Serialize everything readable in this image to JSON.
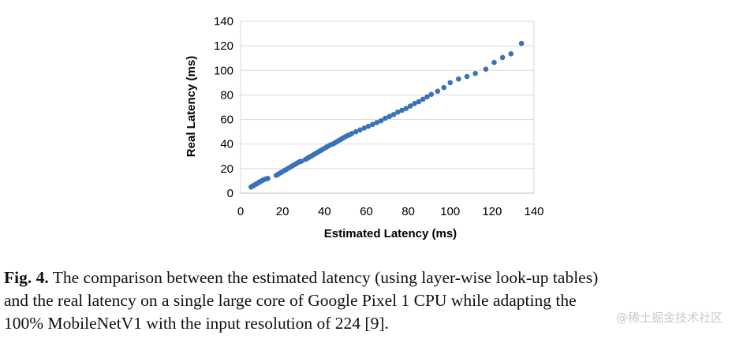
{
  "chart_data": {
    "type": "scatter",
    "xlabel": "Estimated Latency (ms)",
    "ylabel": "Real Latency (ms)",
    "xlim": [
      0,
      140
    ],
    "ylim": [
      0,
      140
    ],
    "x_ticks": [
      "0",
      "20",
      "40",
      "60",
      "80",
      "100",
      "120",
      "140"
    ],
    "y_ticks": [
      "0",
      "20",
      "40",
      "60",
      "80",
      "100",
      "120",
      "140"
    ],
    "grid": "horizontal",
    "color": "#3a72b8",
    "points": [
      [
        5,
        5
      ],
      [
        5.5,
        5.5
      ],
      [
        6,
        6
      ],
      [
        6.5,
        6.5
      ],
      [
        7,
        7
      ],
      [
        7.5,
        7.5
      ],
      [
        8,
        8
      ],
      [
        8.5,
        8.5
      ],
      [
        9,
        9
      ],
      [
        9.5,
        9.5
      ],
      [
        10,
        10
      ],
      [
        10.5,
        10.5
      ],
      [
        11,
        11
      ],
      [
        12,
        11.5
      ],
      [
        13,
        12
      ],
      [
        17,
        14.5
      ],
      [
        18,
        15.5
      ],
      [
        19,
        16.5
      ],
      [
        20,
        17.5
      ],
      [
        21,
        18.5
      ],
      [
        22,
        19.5
      ],
      [
        23,
        20.5
      ],
      [
        24,
        21.5
      ],
      [
        25,
        22.5
      ],
      [
        26,
        23.5
      ],
      [
        27,
        24.5
      ],
      [
        28,
        25.5
      ],
      [
        29,
        26
      ],
      [
        31,
        27.5
      ],
      [
        32,
        28.5
      ],
      [
        33,
        29.5
      ],
      [
        34,
        30.5
      ],
      [
        35,
        31.5
      ],
      [
        36,
        32.5
      ],
      [
        37,
        33.5
      ],
      [
        38,
        34.5
      ],
      [
        39,
        35.5
      ],
      [
        40,
        36.5
      ],
      [
        41,
        37.5
      ],
      [
        42,
        38.5
      ],
      [
        43,
        39.5
      ],
      [
        44,
        40
      ],
      [
        45,
        41
      ],
      [
        46,
        42
      ],
      [
        47,
        43
      ],
      [
        48,
        44
      ],
      [
        49,
        45
      ],
      [
        50,
        46
      ],
      [
        51,
        47
      ],
      [
        52,
        47.5
      ],
      [
        53,
        48.5
      ],
      [
        55,
        50
      ],
      [
        57,
        51.5
      ],
      [
        59,
        53
      ],
      [
        61,
        54.5
      ],
      [
        63,
        56
      ],
      [
        65,
        57.5
      ],
      [
        67,
        59
      ],
      [
        69,
        61
      ],
      [
        71,
        62.5
      ],
      [
        73,
        64
      ],
      [
        75,
        66
      ],
      [
        77,
        67.5
      ],
      [
        79,
        69
      ],
      [
        81,
        71
      ],
      [
        83,
        73
      ],
      [
        85,
        74.5
      ],
      [
        87,
        76.5
      ],
      [
        89,
        78.5
      ],
      [
        91,
        80.5
      ],
      [
        94,
        83
      ],
      [
        97,
        86
      ],
      [
        100,
        90
      ],
      [
        104,
        93
      ],
      [
        108,
        95
      ],
      [
        112,
        97.5
      ],
      [
        117,
        101
      ],
      [
        121,
        106.5
      ],
      [
        125,
        110.5
      ],
      [
        129,
        113.5
      ],
      [
        134,
        122
      ]
    ]
  },
  "caption": {
    "label": "Fig. 4.",
    "line1": " The comparison between the estimated latency (using layer-wise look-up tables)",
    "line2": "and the real latency on a single large core of Google Pixel 1 CPU while adapting the",
    "line3": "100% MobileNetV1 with the input resolution of 224 [9]."
  },
  "watermark": "@稀土掘金技术社区"
}
